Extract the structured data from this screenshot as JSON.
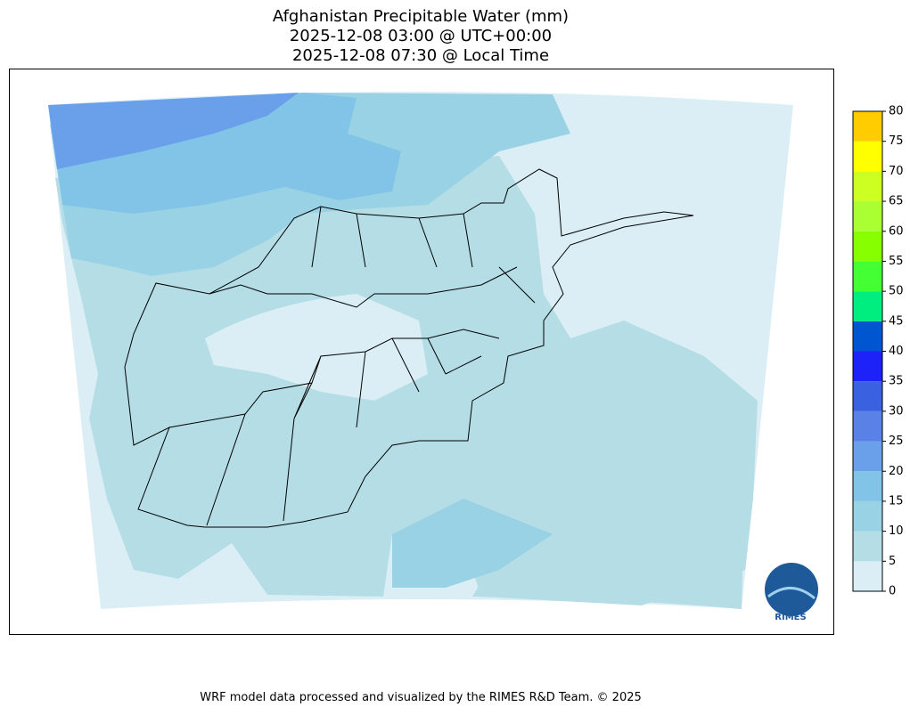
{
  "title": [
    "Afghanistan Precipitable Water (mm)",
    "2025-12-08 03:00 @ UTC+00:00",
    "2025-12-08 07:30 @ Local Time"
  ],
  "colorbar": {
    "ticks": [
      0,
      5,
      10,
      15,
      20,
      25,
      30,
      35,
      40,
      45,
      50,
      55,
      60,
      65,
      70,
      75,
      80
    ],
    "colors": [
      "#dbeef6",
      "#b4dde6",
      "#98d2e4",
      "#82c4e8",
      "#6a9fea",
      "#5a82e6",
      "#3a62e0",
      "#1c22f8",
      "#0055d0",
      "#00ee80",
      "#44ff33",
      "#88ff00",
      "#aaff33",
      "#ccff22",
      "#ffff00",
      "#ffcc00"
    ]
  },
  "logo": "RIMES",
  "footer": "WRF model data processed and visualized by the RIMES R&D Team. © 2025"
}
